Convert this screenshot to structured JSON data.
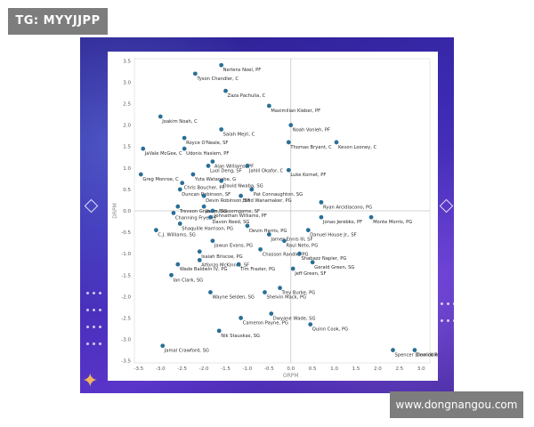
{
  "overlay": {
    "tag_label": "TG: MYYJJPP",
    "watermark_text": "www.dongnangou.com"
  },
  "colors": {
    "frame_background": "#3c2bb2",
    "point_color": "#2a6f97",
    "accent_star": "#f0b45c"
  },
  "chart_data": {
    "type": "scatter",
    "title": "",
    "xlabel": "ORPM",
    "ylabel": "DRPM",
    "xlim": [
      -3.6,
      3.2
    ],
    "ylim": [
      -3.55,
      3.55
    ],
    "xticks": [
      -3.5,
      -3.0,
      -2.5,
      -2.0,
      -1.5,
      -1.0,
      -0.5,
      0.0,
      0.5,
      1.0,
      1.5,
      2.0,
      2.5,
      3.0
    ],
    "yticks": [
      3.5,
      3.0,
      2.5,
      2.0,
      1.5,
      1.0,
      0.5,
      0.0,
      -0.5,
      -1.0,
      -1.5,
      -2.0,
      -2.5,
      -3.0,
      -3.5
    ],
    "grid": false,
    "zero_lines": true,
    "points": [
      {
        "label": "Nerlens Noel, PF",
        "x": -1.6,
        "y": 3.4
      },
      {
        "label": "Tyson Chandler, C",
        "x": -2.2,
        "y": 3.2
      },
      {
        "label": "Zaza Pachulia, C",
        "x": -1.5,
        "y": 2.8
      },
      {
        "label": "Maximilian Kleber, PF",
        "x": -0.5,
        "y": 2.45
      },
      {
        "label": "Joakim Noah, C",
        "x": -3.0,
        "y": 2.2
      },
      {
        "label": "Noah Vonleh, PF",
        "x": 0.0,
        "y": 2.0
      },
      {
        "label": "Salah Mejri, C",
        "x": -1.6,
        "y": 1.9
      },
      {
        "label": "Royce O'Neale, SF",
        "x": -2.45,
        "y": 1.7
      },
      {
        "label": "Thomas Bryant, C",
        "x": -0.05,
        "y": 1.6
      },
      {
        "label": "Kevon Looney, C",
        "x": 1.05,
        "y": 1.6
      },
      {
        "label": "JaVale McGee, C",
        "x": -3.4,
        "y": 1.45
      },
      {
        "label": "Udonis Haslem, PF",
        "x": -2.45,
        "y": 1.45
      },
      {
        "label": "Alan Williams, PF",
        "x": -1.8,
        "y": 1.15
      },
      {
        "label": "Luol Deng, SF",
        "x": -1.9,
        "y": 1.05
      },
      {
        "label": "Jahlil Okafor, C",
        "x": -1.0,
        "y": 1.05
      },
      {
        "label": "Luke Kornet, PF",
        "x": -0.05,
        "y": 0.95
      },
      {
        "label": "Yuta Watanabe, G",
        "x": -2.25,
        "y": 0.85
      },
      {
        "label": "Greg Monroe, C",
        "x": -3.45,
        "y": 0.85
      },
      {
        "label": "David Nwaba, SG",
        "x": -1.6,
        "y": 0.7
      },
      {
        "label": "Chris Boucher, PF",
        "x": -2.5,
        "y": 0.65
      },
      {
        "label": "Duncan Robinson, SF",
        "x": -2.55,
        "y": 0.5
      },
      {
        "label": "Pat Connaughton, SG",
        "x": -0.9,
        "y": 0.5
      },
      {
        "label": "Devin Robinson, SF",
        "x": -2.0,
        "y": 0.35
      },
      {
        "label": "Brad Wanamaker, PG",
        "x": -1.15,
        "y": 0.35
      },
      {
        "label": "Ryan Arcidiacono, PG",
        "x": 0.7,
        "y": 0.2
      },
      {
        "label": "Treveon Graham, SG",
        "x": -2.6,
        "y": 0.1
      },
      {
        "label": "Jaron Blossomgame, SF",
        "x": -2.0,
        "y": 0.1
      },
      {
        "label": "Johnathan Williams, PF",
        "x": -1.8,
        "y": 0.0
      },
      {
        "label": "Channing Frye, PF",
        "x": -2.7,
        "y": -0.05
      },
      {
        "label": "Davon Reed, SG",
        "x": -1.85,
        "y": -0.15
      },
      {
        "label": "Jonas Jerebko, PF",
        "x": 0.7,
        "y": -0.15
      },
      {
        "label": "Monte Morris, PG",
        "x": 1.85,
        "y": -0.15
      },
      {
        "label": "Shaquille Harrison, PG",
        "x": -2.55,
        "y": -0.3
      },
      {
        "label": "Devin Harris, PG",
        "x": -1.0,
        "y": -0.35
      },
      {
        "label": "Danuel House Jr., SF",
        "x": 0.4,
        "y": -0.45
      },
      {
        "label": "C.J. Williams, SG",
        "x": -3.1,
        "y": -0.45
      },
      {
        "label": "James Ennis III, SF",
        "x": -0.5,
        "y": -0.55
      },
      {
        "label": "Raul Neto, PG",
        "x": -0.15,
        "y": -0.7
      },
      {
        "label": "Jawun Evans, PG",
        "x": -1.8,
        "y": -0.7
      },
      {
        "label": "Chasson Randle, PG",
        "x": -0.7,
        "y": -0.9
      },
      {
        "label": "Isaiah Briscoe, PG",
        "x": -2.1,
        "y": -0.95
      },
      {
        "label": "Shabazz Napier, PG",
        "x": 0.2,
        "y": -1.0
      },
      {
        "label": "Alfonzo McKinnie, SF",
        "x": -2.1,
        "y": -1.15
      },
      {
        "label": "Gerald Green, SG",
        "x": 0.5,
        "y": -1.2
      },
      {
        "label": "Wade Baldwin IV, PG",
        "x": -2.6,
        "y": -1.25
      },
      {
        "label": "Tim Frazier, PG",
        "x": -1.2,
        "y": -1.25
      },
      {
        "label": "Jeff Green, SF",
        "x": 0.05,
        "y": -1.35
      },
      {
        "label": "Ian Clark, SG",
        "x": -2.75,
        "y": -1.5
      },
      {
        "label": "Trey Burke, PG",
        "x": -0.25,
        "y": -1.8
      },
      {
        "label": "Wayne Selden, SG",
        "x": -1.85,
        "y": -1.9
      },
      {
        "label": "Shelvin Mack, PG",
        "x": -0.6,
        "y": -1.9
      },
      {
        "label": "Dwyane Wade, SG",
        "x": -0.45,
        "y": -2.4
      },
      {
        "label": "Cameron Payne, PG",
        "x": -1.15,
        "y": -2.5
      },
      {
        "label": "Quinn Cook, PG",
        "x": 0.45,
        "y": -2.65
      },
      {
        "label": "Nik Stauskas, SG",
        "x": -1.65,
        "y": -2.8
      },
      {
        "label": "Jamal Crawford, SG",
        "x": -2.95,
        "y": -3.15
      },
      {
        "label": "Spencer Dinwiddie, PG",
        "x": 2.35,
        "y": -3.25
      },
      {
        "label": "Derrick Rose, PG",
        "x": 2.85,
        "y": -3.25
      }
    ]
  }
}
